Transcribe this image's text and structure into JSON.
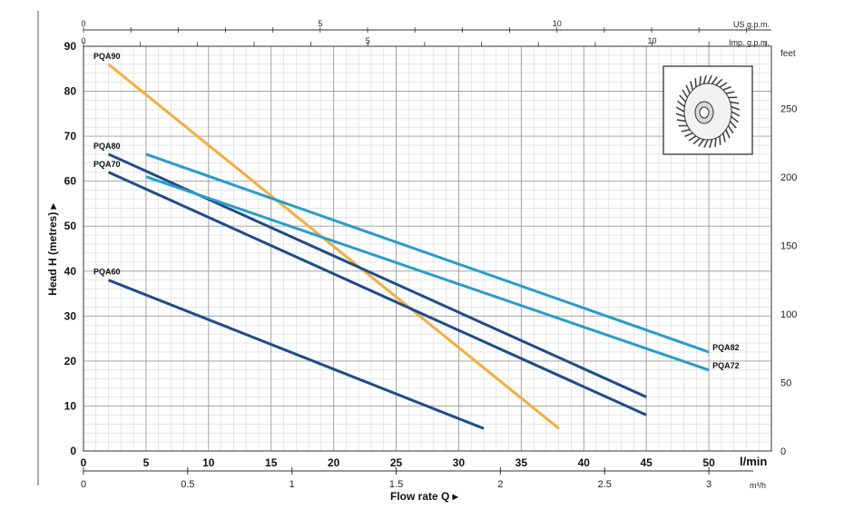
{
  "chart_data": {
    "type": "line",
    "title": "",
    "xlabel": "l/min",
    "ylabel": "Head H (metres)",
    "xlim": [
      0,
      55
    ],
    "ylim": [
      0,
      90
    ],
    "x_ticks": [
      0,
      5,
      10,
      15,
      20,
      25,
      30,
      35,
      40,
      45,
      50
    ],
    "y_ticks": [
      0,
      10,
      20,
      30,
      40,
      50,
      60,
      70,
      80,
      90
    ],
    "grid": true,
    "secondary_axes": {
      "feet": {
        "label": "feet",
        "ticks": [
          0,
          50,
          100,
          150,
          200,
          250
        ]
      },
      "m3h": {
        "label": "m³/h",
        "ticks": [
          "0",
          "0.5",
          "1",
          "1.5",
          "2",
          "2.5",
          "3"
        ]
      },
      "us_gpm": {
        "label": "US g.p.m.",
        "ticks": [
          "0",
          "5",
          "10"
        ]
      },
      "imp_gpm": {
        "label": "Imp. g.p.m.",
        "ticks": [
          "0",
          "5",
          "10"
        ]
      },
      "flow_rate_label": "Flow rate Q"
    },
    "series": [
      {
        "name": "PQA90",
        "color": "#f5ad3c",
        "points": [
          [
            2,
            86
          ],
          [
            38,
            5
          ]
        ]
      },
      {
        "name": "PQA80",
        "color": "#1e4d87",
        "points": [
          [
            2,
            66
          ],
          [
            45,
            12
          ]
        ]
      },
      {
        "name": "PQA70",
        "color": "#1e4d87",
        "points": [
          [
            2,
            62
          ],
          [
            45,
            8
          ]
        ]
      },
      {
        "name": "PQA60",
        "color": "#1e4d87",
        "points": [
          [
            2,
            38
          ],
          [
            32,
            5
          ]
        ]
      },
      {
        "name": "PQA82",
        "color": "#2a9cc9",
        "points": [
          [
            5,
            66
          ],
          [
            50,
            22
          ]
        ]
      },
      {
        "name": "PQA72",
        "color": "#2a9cc9",
        "points": [
          [
            5,
            61
          ],
          [
            50,
            18
          ]
        ]
      }
    ]
  }
}
